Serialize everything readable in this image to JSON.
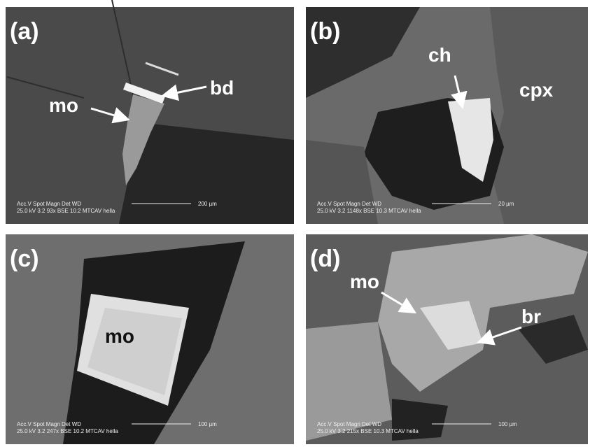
{
  "panels": [
    {
      "label": "(a)",
      "annotations": [
        "mo",
        "bd"
      ],
      "info": {
        "header": "Acc.V  Spot Magn    Det  WD",
        "values": "25.0 kV 3.2    93x    BSE 10.2  MTCAV hella",
        "scale": "200 µm"
      }
    },
    {
      "label": "(b)",
      "annotations": [
        "ch",
        "cpx"
      ],
      "info": {
        "header": "Acc.V  Spot Magn    Det  WD",
        "values": "25.0 kV 3.2   1148x   BSE 10.3  MTCAV hella",
        "scale": "20 µm"
      }
    },
    {
      "label": "(c)",
      "annotations": [
        "mo"
      ],
      "info": {
        "header": "Acc.V  Spot Magn    Det  WD",
        "values": "25.0 kV 3.2   247x    BSE 10.2  MTCAV hella",
        "scale": "100 µm"
      }
    },
    {
      "label": "(d)",
      "annotations": [
        "mo",
        "br"
      ],
      "info": {
        "header": "Acc.V  Spot Magn    Det  WD",
        "values": "25.0 kV 3.2   215x    BSE 10.3  MTCAV hella",
        "scale": "100 µm"
      }
    }
  ]
}
